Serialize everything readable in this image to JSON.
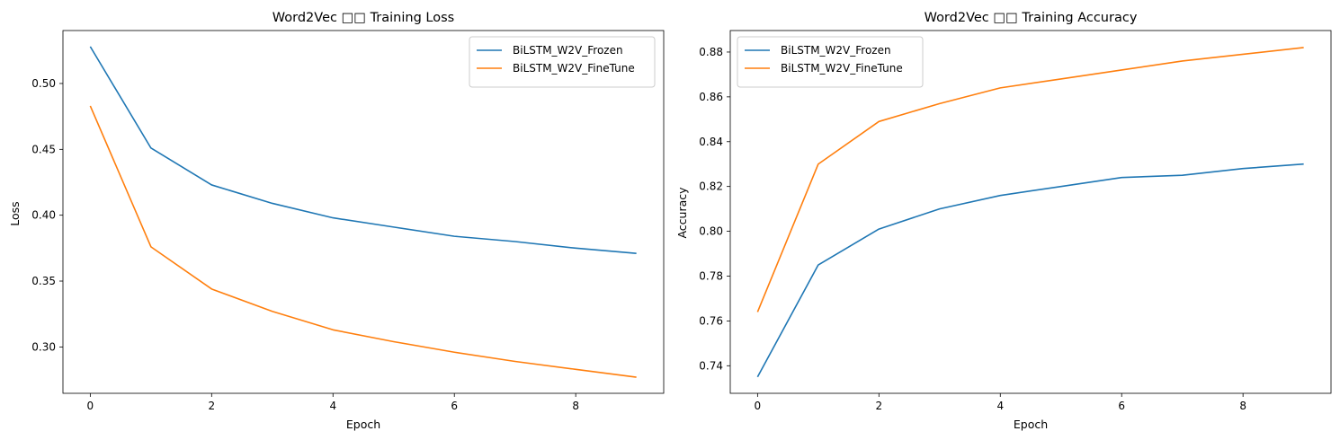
{
  "chart_data": [
    {
      "type": "line",
      "title": "Word2Vec □□ Training Loss",
      "xlabel": "Epoch",
      "ylabel": "Loss",
      "x": [
        0,
        1,
        2,
        3,
        4,
        5,
        6,
        7,
        8,
        9
      ],
      "xlim": [
        -0.45,
        9.45
      ],
      "ylim": [
        0.2648,
        0.5402
      ],
      "xticks": [
        0,
        2,
        4,
        6,
        8
      ],
      "xtick_labels": [
        "0",
        "2",
        "4",
        "6",
        "8"
      ],
      "yticks": [
        0.3,
        0.35,
        0.4,
        0.45,
        0.5
      ],
      "ytick_labels": [
        "0.30",
        "0.35",
        "0.40",
        "0.45",
        "0.50"
      ],
      "legend_position": "top-right",
      "grid": false,
      "series": [
        {
          "name": "BiLSTM_W2V_Frozen",
          "color": "#1f77b4",
          "values": [
            0.528,
            0.451,
            0.423,
            0.409,
            0.398,
            0.391,
            0.384,
            0.38,
            0.375,
            0.371
          ]
        },
        {
          "name": "BiLSTM_W2V_FineTune",
          "color": "#ff7f0e",
          "values": [
            0.483,
            0.376,
            0.344,
            0.327,
            0.313,
            0.304,
            0.296,
            0.289,
            0.283,
            0.277
          ]
        }
      ]
    },
    {
      "type": "line",
      "title": "Word2Vec □□ Training Accuracy",
      "xlabel": "Epoch",
      "ylabel": "Accuracy",
      "x": [
        0,
        1,
        2,
        3,
        4,
        5,
        6,
        7,
        8,
        9
      ],
      "xlim": [
        -0.45,
        9.45
      ],
      "ylim": [
        0.7277,
        0.8896
      ],
      "xticks": [
        0,
        2,
        4,
        6,
        8
      ],
      "xtick_labels": [
        "0",
        "2",
        "4",
        "6",
        "8"
      ],
      "yticks": [
        0.74,
        0.76,
        0.78,
        0.8,
        0.82,
        0.84,
        0.86,
        0.88
      ],
      "ytick_labels": [
        "0.74",
        "0.76",
        "0.78",
        "0.80",
        "0.82",
        "0.84",
        "0.86",
        "0.88"
      ],
      "legend_position": "top-left",
      "grid": false,
      "series": [
        {
          "name": "BiLSTM_W2V_Frozen",
          "color": "#1f77b4",
          "values": [
            0.735,
            0.785,
            0.801,
            0.81,
            0.816,
            0.82,
            0.824,
            0.825,
            0.828,
            0.83
          ]
        },
        {
          "name": "BiLSTM_W2V_FineTune",
          "color": "#ff7f0e",
          "values": [
            0.764,
            0.83,
            0.849,
            0.857,
            0.864,
            0.868,
            0.872,
            0.876,
            0.879,
            0.882
          ]
        }
      ]
    }
  ]
}
